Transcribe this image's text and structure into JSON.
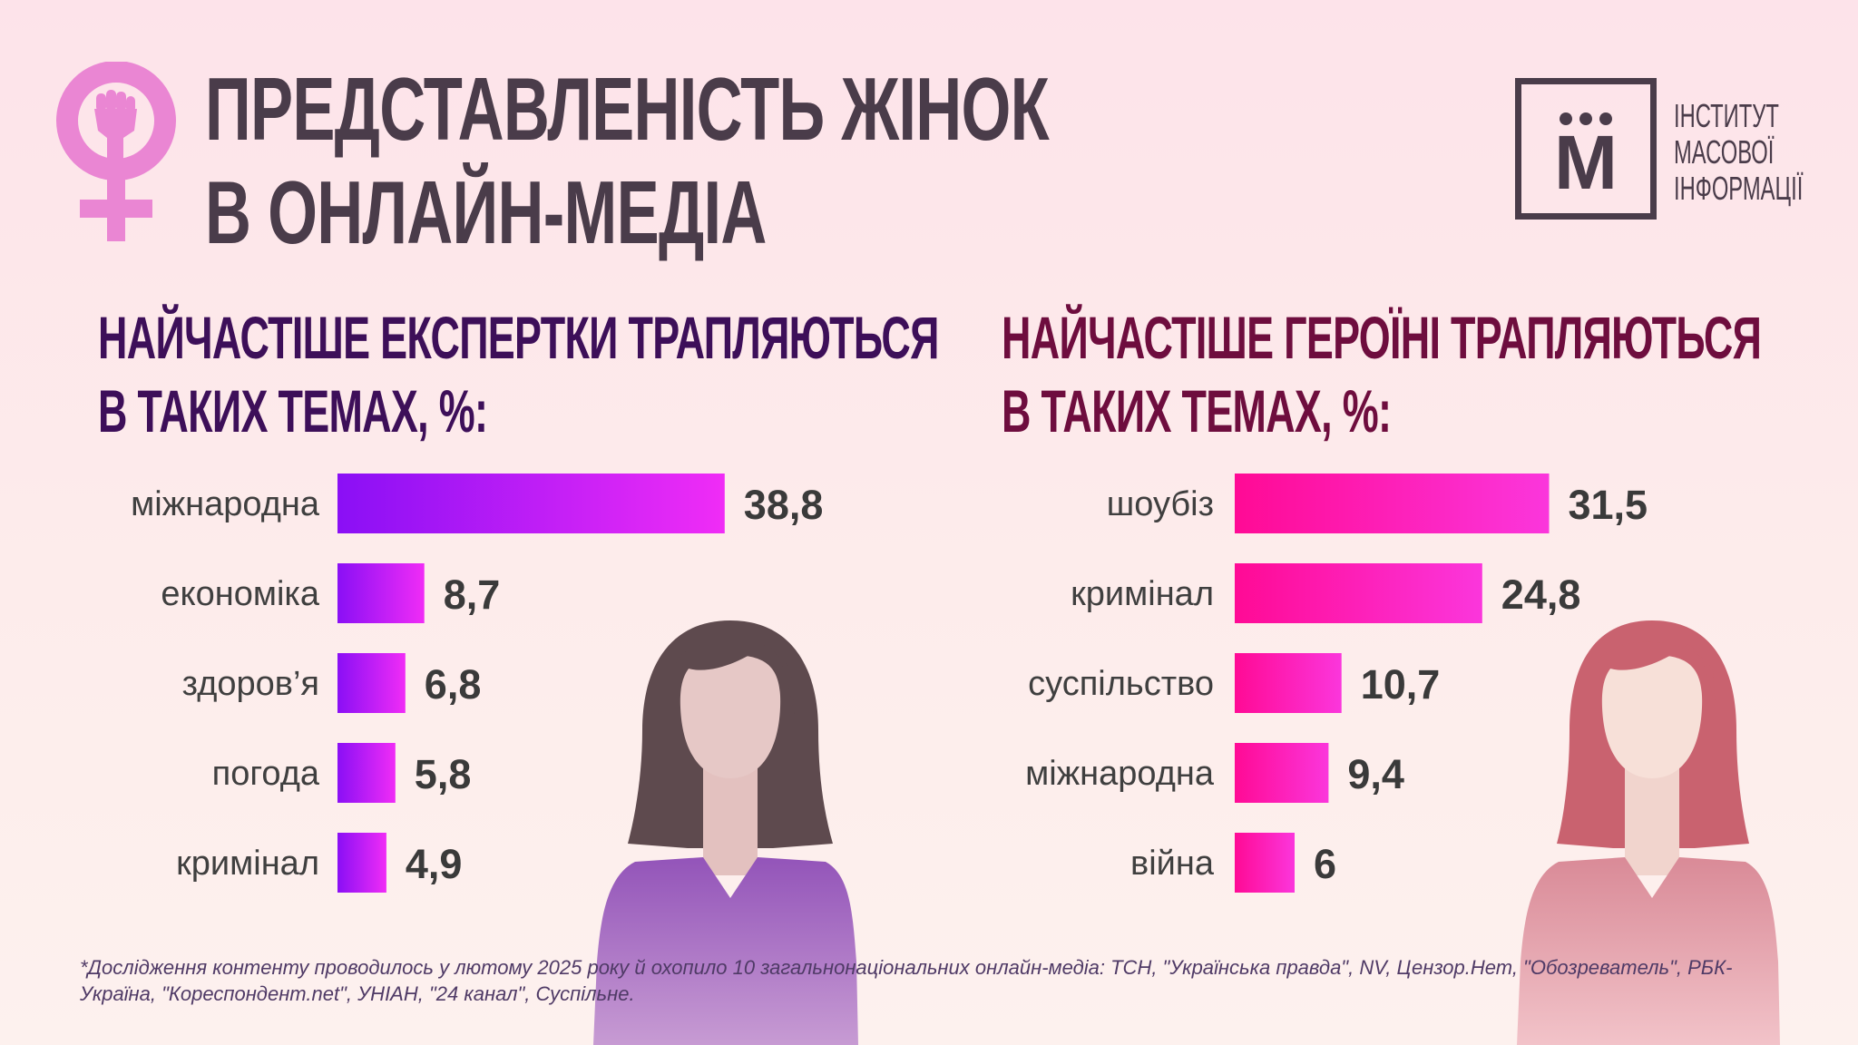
{
  "header": {
    "title_line1": "ПРЕДСТАВЛЕНІСТЬ ЖІНОК",
    "title_line2": "В ОНЛАЙН-МЕДІА"
  },
  "logo": {
    "letter": "М",
    "line1": "ІНСТИТУТ",
    "line2": "МАСОВОЇ",
    "line3": "ІНФОРМАЦІЇ"
  },
  "colors": {
    "left_bar_start": "#8a0ff5",
    "left_bar_end": "#f02cf6",
    "right_bar_start": "#ff0a95",
    "right_bar_end": "#fb36dc",
    "left_title": "#3d0f59",
    "right_title": "#6e0d3e",
    "feminist_symbol": "#ea86d3"
  },
  "chart_data": [
    {
      "type": "bar",
      "orientation": "horizontal",
      "title_line1": "НАЙЧАСТІШЕ ЕКСПЕРТКИ ТРАПЛЯЮТЬСЯ",
      "title_line2": "В ТАКИХ ТЕМАХ, %:",
      "categories": [
        "міжнародна",
        "економіка",
        "здоров’я",
        "погода",
        "кримінал"
      ],
      "values": [
        38.8,
        8.7,
        6.8,
        5.8,
        4.9
      ],
      "value_labels": [
        "38,8",
        "8,7",
        "6,8",
        "5,8",
        "4,9"
      ],
      "xlim": [
        0,
        40
      ],
      "unit": "%",
      "grid": false
    },
    {
      "type": "bar",
      "orientation": "horizontal",
      "title_line1": "НАЙЧАСТІШЕ ГЕРОЇНІ ТРАПЛЯЮТЬСЯ",
      "title_line2": "В ТАКИХ ТЕМАХ, %:",
      "categories": [
        "шоубіз",
        "кримінал",
        "суспільство",
        "міжнародна",
        "війна"
      ],
      "values": [
        31.5,
        24.8,
        10.7,
        9.4,
        6
      ],
      "value_labels": [
        "31,5",
        "24,8",
        "10,7",
        "9,4",
        "6"
      ],
      "xlim": [
        0,
        40
      ],
      "unit": "%",
      "grid": false
    }
  ],
  "footnote": "*Дослідження контенту проводилось у лютому 2025 року й охопило 10 загальнонаціональних онлайн-медіа: ТСН, \"Українська правда\", NV, Цензор.Нет, \"Обозреватель\", РБК-Україна, \"Кореспондент.net\", УНІАН, \"24 канал\", Суспільне."
}
